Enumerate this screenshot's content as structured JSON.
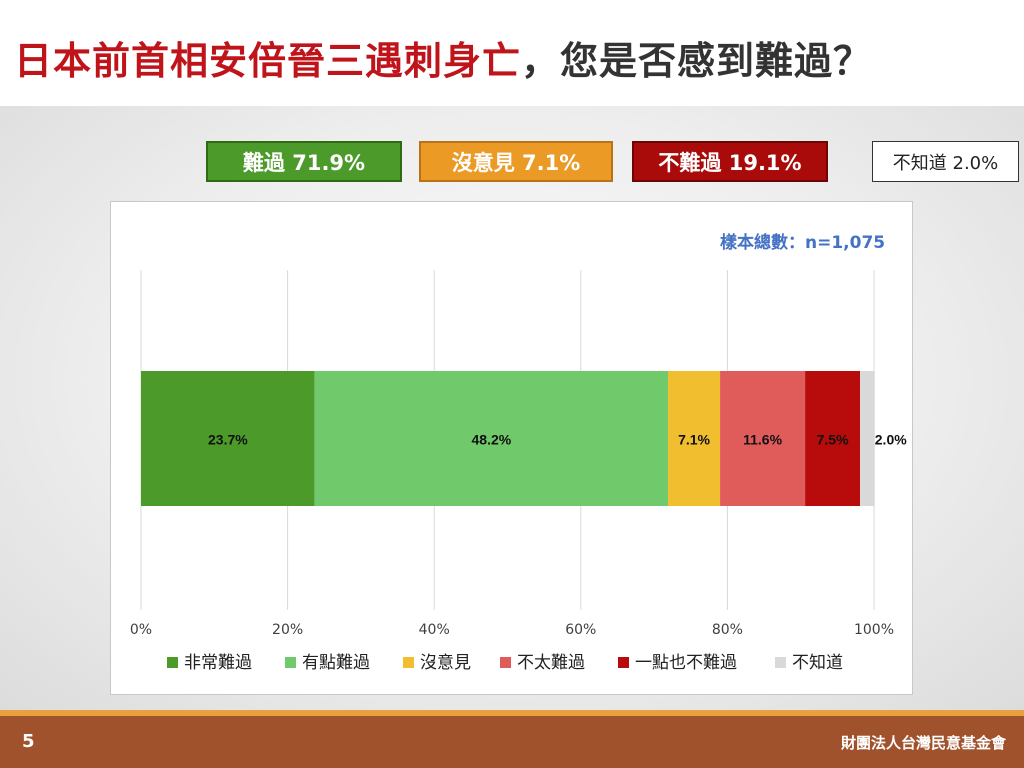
{
  "title": {
    "red": "日本前首相安倍晉三遇刺身亡",
    "dark": "，您是否感到難過？"
  },
  "summary": [
    {
      "label": "難過 71.9%",
      "color": "#4c9a2a"
    },
    {
      "label": "沒意見 7.1%",
      "color": "#eb9a25"
    },
    {
      "label": "不難過 19.1%",
      "color": "#a90a0a"
    },
    {
      "label": "不知道 2.0%",
      "color": "#ffffff"
    }
  ],
  "sample_size": "樣本總數：n=1,075",
  "footer": {
    "page_number": "5",
    "organization": "財團法人台灣民意基金會"
  },
  "chart_data": {
    "type": "bar",
    "orientation": "horizontal-stacked",
    "categories": [
      ""
    ],
    "series": [
      {
        "name": "非常難過",
        "values": [
          23.7
        ],
        "label": "23.7%",
        "color": "#4c9a2a"
      },
      {
        "name": "有點難過",
        "values": [
          48.2
        ],
        "label": "48.2%",
        "color": "#70c96a"
      },
      {
        "name": "沒意見",
        "values": [
          7.1
        ],
        "label": "7.1%",
        "color": "#f1be2f"
      },
      {
        "name": "不太難過",
        "values": [
          11.6
        ],
        "label": "11.6%",
        "color": "#e05c5a"
      },
      {
        "name": "一點也不難過",
        "values": [
          7.5
        ],
        "label": "7.5%",
        "color": "#b80b0b"
      },
      {
        "name": "不知道",
        "values": [
          2.0
        ],
        "label": "2.0%",
        "color": "#d9d9d9"
      }
    ],
    "x_ticks": [
      "0%",
      "20%",
      "40%",
      "60%",
      "80%",
      "100%"
    ],
    "xlim": [
      0,
      100
    ],
    "grid": true,
    "legend_position": "bottom"
  }
}
